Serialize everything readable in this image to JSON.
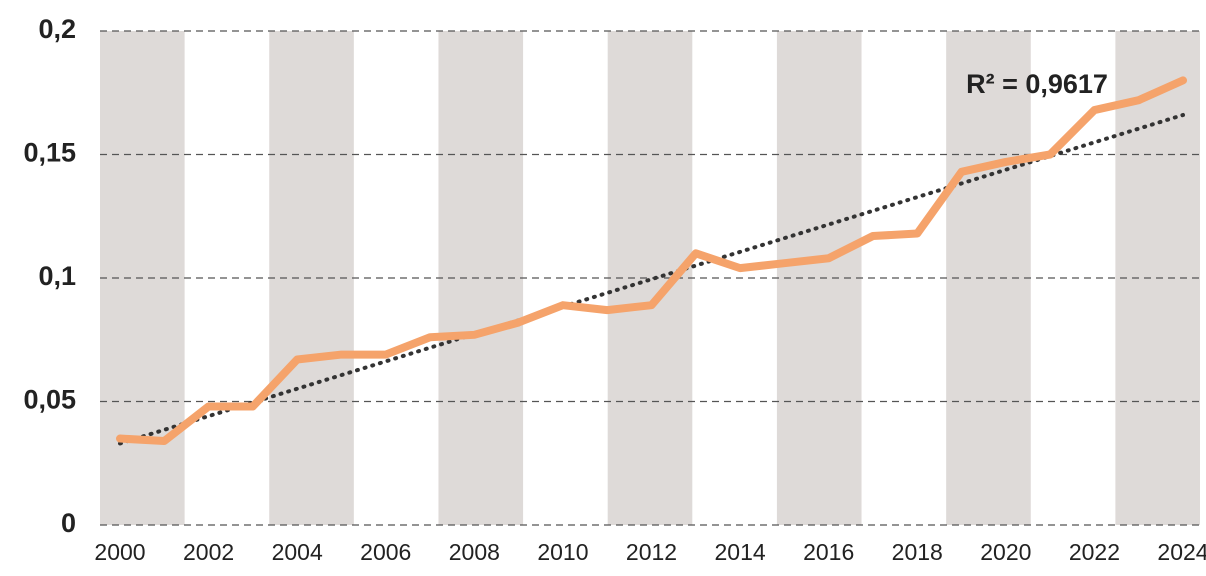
{
  "chart_data": {
    "type": "line",
    "categories": [
      "2000",
      null,
      "2002",
      null,
      "2004",
      null,
      "2006",
      null,
      "2008",
      null,
      "2010",
      null,
      "2012",
      null,
      "2014",
      null,
      "2016",
      null,
      "2018",
      null,
      "2020",
      null,
      "2022",
      null,
      "2024"
    ],
    "series": [
      {
        "color": "#f5a36b",
        "values": [
          0.035,
          0.034,
          0.048,
          0.048,
          0.067,
          0.069,
          0.069,
          0.076,
          0.077,
          0.082,
          0.089,
          0.087,
          0.089,
          0.11,
          0.104,
          0.106,
          0.108,
          0.117,
          0.118,
          0.143,
          0.147,
          0.15,
          0.168,
          0.172,
          0.18
        ]
      }
    ],
    "trendline": {
      "start": 0.033,
      "end": 0.166,
      "color": "#333333"
    },
    "annotation": "R² = 0,9617",
    "ylim": [
      0,
      0.2
    ],
    "yticks": [
      0,
      {
        "value": 0.05,
        "label": "0,05"
      },
      {
        "value": 0.1,
        "label": "0,1"
      },
      {
        "value": 0.15,
        "label": "0,15"
      },
      {
        "value": 0.2,
        "label": "0,2"
      }
    ],
    "grid": true
  }
}
